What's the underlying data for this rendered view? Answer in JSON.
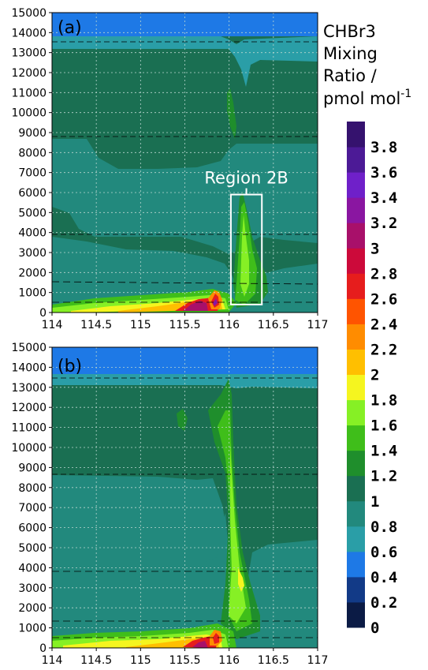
{
  "colors": {
    "c0": "#0b1b45",
    "c02": "#123a87",
    "c04": "#1e79e6",
    "c06": "#2a9ea7",
    "c08": "#22897d",
    "c1": "#1a6f52",
    "c12": "#1f8e2c",
    "c14": "#3fbe1a",
    "c16": "#86f025",
    "c18": "#f5f51f",
    "c2": "#ffbf00",
    "c22": "#ff8c00",
    "c24": "#ff5400",
    "c26": "#e61d1d",
    "c28": "#cc0a3a",
    "c3": "#a8106a",
    "c32": "#8a16a1",
    "c34": "#6f20c9",
    "c36": "#4c1a96",
    "c38": "#35126e",
    "grid": "#b9d6cf",
    "outline": "#ffffff"
  },
  "chart_data": [
    {
      "panel_label": "(a)",
      "type": "heatmap",
      "x_ticks": [
        "114",
        "114.5",
        "115",
        "115.5",
        "116",
        "116.5",
        "117"
      ],
      "y_ticks": [
        "0",
        "1000",
        "2000",
        "3000",
        "4000",
        "5000",
        "6000",
        "7000",
        "8000",
        "9000",
        "10000",
        "11000",
        "12000",
        "13000",
        "14000",
        "15000"
      ],
      "xlim": [
        114,
        117
      ],
      "ylim": [
        0,
        15000
      ],
      "grid": true,
      "annotation": {
        "label": "Region 2B",
        "x": [
          116.02,
          116.37
        ],
        "y": [
          400,
          5900
        ]
      }
    },
    {
      "panel_label": "(b)",
      "type": "heatmap",
      "x_ticks": [
        "114",
        "114.5",
        "115",
        "115.5",
        "116",
        "116.5",
        "117"
      ],
      "y_ticks": [
        "0",
        "1000",
        "2000",
        "3000",
        "4000",
        "5000",
        "6000",
        "7000",
        "8000",
        "9000",
        "10000",
        "11000",
        "12000",
        "13000",
        "14000",
        "15000"
      ],
      "xlim": [
        114,
        117
      ],
      "ylim": [
        0,
        15000
      ],
      "grid": true
    }
  ],
  "colorbar": {
    "title_lines": [
      "CHBr3",
      "Mixing",
      "Ratio /"
    ],
    "units": "pmol mol",
    "units_sup": "-1",
    "levels": [
      "0",
      "0.2",
      "0.4",
      "0.6",
      "0.8",
      "1",
      "1.2",
      "1.4",
      "1.6",
      "1.8",
      "2",
      "2.2",
      "2.4",
      "2.6",
      "2.8",
      "3",
      "3.2",
      "3.4",
      "3.6",
      "3.8"
    ]
  }
}
